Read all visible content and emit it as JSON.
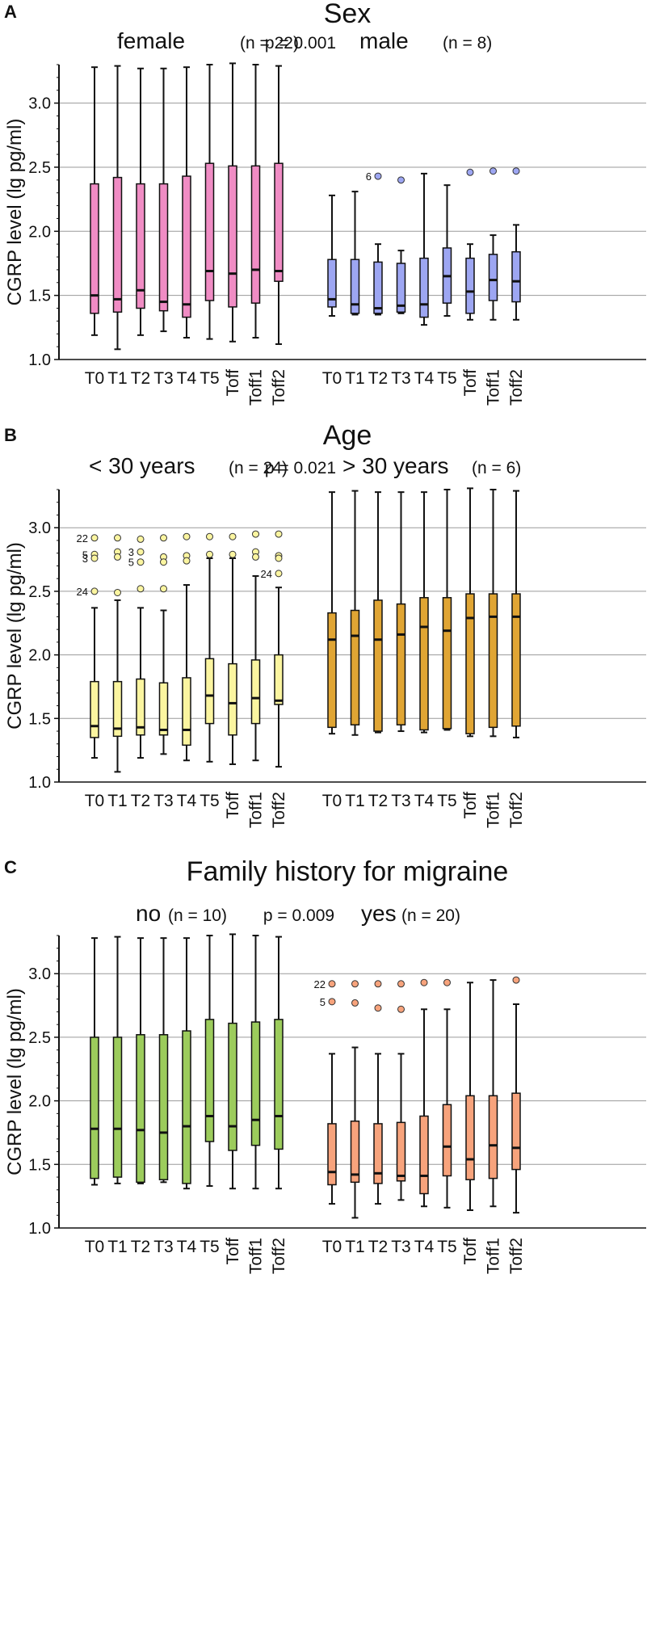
{
  "chart_data": [
    {
      "type": "boxplot",
      "panel": "A",
      "title": "Sex",
      "p_value": "p = 0.001",
      "ylabel": "CGRP level (lg pg/ml)",
      "ylim": [
        1.0,
        3.3
      ],
      "yticks": [
        "1.0",
        "1.5",
        "2.0",
        "2.5",
        "3.0"
      ],
      "grid": true,
      "categories": [
        "T0",
        "T1",
        "T2",
        "T3",
        "T4",
        "T5",
        "Toff",
        "Toff1",
        "Toff2"
      ],
      "groups": [
        {
          "name": "female",
          "n": "(n = 22)",
          "color": "#f08cc4",
          "boxes": [
            {
              "min": 1.19,
              "q1": 1.36,
              "median": 1.5,
              "q3": 2.37,
              "max": 3.28
            },
            {
              "min": 1.08,
              "q1": 1.37,
              "median": 1.47,
              "q3": 2.42,
              "max": 3.29
            },
            {
              "min": 1.19,
              "q1": 1.4,
              "median": 1.54,
              "q3": 2.37,
              "max": 3.27
            },
            {
              "min": 1.22,
              "q1": 1.38,
              "median": 1.45,
              "q3": 2.37,
              "max": 3.27
            },
            {
              "min": 1.17,
              "q1": 1.33,
              "median": 1.43,
              "q3": 2.43,
              "max": 3.28
            },
            {
              "min": 1.16,
              "q1": 1.46,
              "median": 1.69,
              "q3": 2.53,
              "max": 3.3
            },
            {
              "min": 1.14,
              "q1": 1.41,
              "median": 1.67,
              "q3": 2.51,
              "max": 3.31
            },
            {
              "min": 1.17,
              "q1": 1.44,
              "median": 1.7,
              "q3": 2.51,
              "max": 3.3
            },
            {
              "min": 1.12,
              "q1": 1.61,
              "median": 1.69,
              "q3": 2.53,
              "max": 3.29
            }
          ],
          "outliers": []
        },
        {
          "name": "male",
          "n": "(n = 8)",
          "color": "#9da6f2",
          "boxes": [
            {
              "min": 1.34,
              "q1": 1.41,
              "median": 1.47,
              "q3": 1.78,
              "max": 2.28
            },
            {
              "min": 1.35,
              "q1": 1.36,
              "median": 1.43,
              "q3": 1.78,
              "max": 2.31
            },
            {
              "min": 1.35,
              "q1": 1.36,
              "median": 1.4,
              "q3": 1.76,
              "max": 1.9
            },
            {
              "min": 1.36,
              "q1": 1.37,
              "median": 1.42,
              "q3": 1.75,
              "max": 1.85
            },
            {
              "min": 1.27,
              "q1": 1.33,
              "median": 1.43,
              "q3": 1.79,
              "max": 2.45
            },
            {
              "min": 1.34,
              "q1": 1.44,
              "median": 1.65,
              "q3": 1.87,
              "max": 2.36
            },
            {
              "min": 1.31,
              "q1": 1.36,
              "median": 1.53,
              "q3": 1.79,
              "max": 1.9
            },
            {
              "min": 1.31,
              "q1": 1.46,
              "median": 1.62,
              "q3": 1.82,
              "max": 1.97
            },
            {
              "min": 1.31,
              "q1": 1.45,
              "median": 1.61,
              "q3": 1.84,
              "max": 2.05
            }
          ],
          "outliers": [
            {
              "cat": 2,
              "value": 2.43,
              "label": "6"
            },
            {
              "cat": 3,
              "value": 2.4,
              "label": ""
            },
            {
              "cat": 6,
              "value": 2.46,
              "label": ""
            },
            {
              "cat": 7,
              "value": 2.47,
              "label": ""
            },
            {
              "cat": 8,
              "value": 2.47,
              "label": ""
            }
          ]
        }
      ]
    },
    {
      "type": "boxplot",
      "panel": "B",
      "title": "Age",
      "p_value": "p = 0.021",
      "ylabel": "CGRP level (lg pg/ml)",
      "ylim": [
        1.0,
        3.3
      ],
      "yticks": [
        "1.0",
        "1.5",
        "2.0",
        "2.5",
        "3.0"
      ],
      "grid": true,
      "categories": [
        "T0",
        "T1",
        "T2",
        "T3",
        "T4",
        "T5",
        "Toff",
        "Toff1",
        "Toff2"
      ],
      "groups": [
        {
          "name": "< 30 years",
          "n": "(n = 24)",
          "color": "#fbf5a0",
          "boxes": [
            {
              "min": 1.19,
              "q1": 1.35,
              "median": 1.44,
              "q3": 1.79,
              "max": 2.37
            },
            {
              "min": 1.08,
              "q1": 1.36,
              "median": 1.42,
              "q3": 1.79,
              "max": 2.43
            },
            {
              "min": 1.19,
              "q1": 1.37,
              "median": 1.43,
              "q3": 1.81,
              "max": 2.37
            },
            {
              "min": 1.22,
              "q1": 1.37,
              "median": 1.41,
              "q3": 1.78,
              "max": 2.35
            },
            {
              "min": 1.17,
              "q1": 1.29,
              "median": 1.41,
              "q3": 1.82,
              "max": 2.55
            },
            {
              "min": 1.16,
              "q1": 1.46,
              "median": 1.68,
              "q3": 1.97,
              "max": 2.76
            },
            {
              "min": 1.14,
              "q1": 1.37,
              "median": 1.62,
              "q3": 1.93,
              "max": 2.76
            },
            {
              "min": 1.17,
              "q1": 1.46,
              "median": 1.66,
              "q3": 1.96,
              "max": 2.62
            },
            {
              "min": 1.12,
              "q1": 1.61,
              "median": 1.64,
              "q3": 2.0,
              "max": 2.53
            }
          ],
          "outliers": [
            {
              "cat": 0,
              "value": 2.92,
              "label": "22"
            },
            {
              "cat": 0,
              "value": 2.79,
              "label": "5"
            },
            {
              "cat": 0,
              "value": 2.76,
              "label": "3"
            },
            {
              "cat": 0,
              "value": 2.5,
              "label": "24"
            },
            {
              "cat": 1,
              "value": 2.92,
              "label": ""
            },
            {
              "cat": 1,
              "value": 2.81,
              "label": ""
            },
            {
              "cat": 1,
              "value": 2.77,
              "label": ""
            },
            {
              "cat": 1,
              "value": 2.49,
              "label": ""
            },
            {
              "cat": 2,
              "value": 2.91,
              "label": ""
            },
            {
              "cat": 2,
              "value": 2.81,
              "label": "3"
            },
            {
              "cat": 2,
              "value": 2.73,
              "label": "5"
            },
            {
              "cat": 2,
              "value": 2.52,
              "label": ""
            },
            {
              "cat": 3,
              "value": 2.92,
              "label": ""
            },
            {
              "cat": 3,
              "value": 2.77,
              "label": ""
            },
            {
              "cat": 3,
              "value": 2.73,
              "label": ""
            },
            {
              "cat": 3,
              "value": 2.52,
              "label": ""
            },
            {
              "cat": 4,
              "value": 2.93,
              "label": ""
            },
            {
              "cat": 4,
              "value": 2.78,
              "label": ""
            },
            {
              "cat": 4,
              "value": 2.74,
              "label": ""
            },
            {
              "cat": 5,
              "value": 2.93,
              "label": ""
            },
            {
              "cat": 5,
              "value": 2.79,
              "label": ""
            },
            {
              "cat": 6,
              "value": 2.93,
              "label": ""
            },
            {
              "cat": 6,
              "value": 2.79,
              "label": ""
            },
            {
              "cat": 7,
              "value": 2.95,
              "label": ""
            },
            {
              "cat": 7,
              "value": 2.81,
              "label": ""
            },
            {
              "cat": 7,
              "value": 2.77,
              "label": ""
            },
            {
              "cat": 8,
              "value": 2.95,
              "label": ""
            },
            {
              "cat": 8,
              "value": 2.78,
              "label": ""
            },
            {
              "cat": 8,
              "value": 2.76,
              "label": ""
            },
            {
              "cat": 8,
              "value": 2.64,
              "label": "24"
            }
          ]
        },
        {
          "name": "> 30 years",
          "n": "(n = 6)",
          "color": "#e0a534",
          "boxes": [
            {
              "min": 1.38,
              "q1": 1.43,
              "median": 2.12,
              "q3": 2.33,
              "max": 3.28
            },
            {
              "min": 1.37,
              "q1": 1.45,
              "median": 2.15,
              "q3": 2.35,
              "max": 3.29
            },
            {
              "min": 1.39,
              "q1": 1.4,
              "median": 2.12,
              "q3": 2.43,
              "max": 3.28
            },
            {
              "min": 1.4,
              "q1": 1.45,
              "median": 2.16,
              "q3": 2.4,
              "max": 3.28
            },
            {
              "min": 1.39,
              "q1": 1.41,
              "median": 2.22,
              "q3": 2.45,
              "max": 3.28
            },
            {
              "min": 1.41,
              "q1": 1.42,
              "median": 2.19,
              "q3": 2.45,
              "max": 3.3
            },
            {
              "min": 1.36,
              "q1": 1.38,
              "median": 2.29,
              "q3": 2.48,
              "max": 3.31
            },
            {
              "min": 1.36,
              "q1": 1.43,
              "median": 2.3,
              "q3": 2.48,
              "max": 3.3
            },
            {
              "min": 1.35,
              "q1": 1.44,
              "median": 2.3,
              "q3": 2.48,
              "max": 3.29
            }
          ],
          "outliers": []
        }
      ]
    },
    {
      "type": "boxplot",
      "panel": "C",
      "title": "Family history for migraine",
      "p_value": "p = 0.009",
      "ylabel": "CGRP level (lg pg/ml)",
      "ylim": [
        1.0,
        3.3
      ],
      "yticks": [
        "1.0",
        "1.5",
        "2.0",
        "2.5",
        "3.0"
      ],
      "grid": true,
      "categories": [
        "T0",
        "T1",
        "T2",
        "T3",
        "T4",
        "T5",
        "Toff",
        "Toff1",
        "Toff2"
      ],
      "groups": [
        {
          "name": "no",
          "n": "(n = 10)",
          "color": "#9ccc5c",
          "boxes": [
            {
              "min": 1.34,
              "q1": 1.39,
              "median": 1.78,
              "q3": 2.5,
              "max": 3.28
            },
            {
              "min": 1.35,
              "q1": 1.4,
              "median": 1.78,
              "q3": 2.5,
              "max": 3.29
            },
            {
              "min": 1.35,
              "q1": 1.36,
              "median": 1.77,
              "q3": 2.52,
              "max": 3.28
            },
            {
              "min": 1.36,
              "q1": 1.38,
              "median": 1.75,
              "q3": 2.52,
              "max": 3.28
            },
            {
              "min": 1.31,
              "q1": 1.35,
              "median": 1.8,
              "q3": 2.55,
              "max": 3.28
            },
            {
              "min": 1.33,
              "q1": 1.68,
              "median": 1.88,
              "q3": 2.64,
              "max": 3.3
            },
            {
              "min": 1.31,
              "q1": 1.61,
              "median": 1.8,
              "q3": 2.61,
              "max": 3.31
            },
            {
              "min": 1.31,
              "q1": 1.65,
              "median": 1.85,
              "q3": 2.62,
              "max": 3.3
            },
            {
              "min": 1.31,
              "q1": 1.62,
              "median": 1.88,
              "q3": 2.64,
              "max": 3.29
            }
          ],
          "outliers": []
        },
        {
          "name": "yes",
          "n": "(n = 20)",
          "color": "#f7a37c",
          "boxes": [
            {
              "min": 1.19,
              "q1": 1.34,
              "median": 1.44,
              "q3": 1.82,
              "max": 2.37
            },
            {
              "min": 1.08,
              "q1": 1.36,
              "median": 1.42,
              "q3": 1.84,
              "max": 2.42
            },
            {
              "min": 1.19,
              "q1": 1.35,
              "median": 1.43,
              "q3": 1.82,
              "max": 2.37
            },
            {
              "min": 1.22,
              "q1": 1.37,
              "median": 1.41,
              "q3": 1.83,
              "max": 2.37
            },
            {
              "min": 1.17,
              "q1": 1.27,
              "median": 1.41,
              "q3": 1.88,
              "max": 2.72
            },
            {
              "min": 1.16,
              "q1": 1.41,
              "median": 1.64,
              "q3": 1.97,
              "max": 2.72
            },
            {
              "min": 1.14,
              "q1": 1.38,
              "median": 1.54,
              "q3": 2.04,
              "max": 2.93
            },
            {
              "min": 1.17,
              "q1": 1.39,
              "median": 1.65,
              "q3": 2.04,
              "max": 2.95
            },
            {
              "min": 1.12,
              "q1": 1.46,
              "median": 1.63,
              "q3": 2.06,
              "max": 2.76
            }
          ],
          "outliers": [
            {
              "cat": 0,
              "value": 2.92,
              "label": "22"
            },
            {
              "cat": 0,
              "value": 2.78,
              "label": "5"
            },
            {
              "cat": 1,
              "value": 2.92,
              "label": ""
            },
            {
              "cat": 1,
              "value": 2.77,
              "label": ""
            },
            {
              "cat": 2,
              "value": 2.92,
              "label": ""
            },
            {
              "cat": 2,
              "value": 2.73,
              "label": ""
            },
            {
              "cat": 3,
              "value": 2.92,
              "label": ""
            },
            {
              "cat": 3,
              "value": 2.72,
              "label": ""
            },
            {
              "cat": 4,
              "value": 2.93,
              "label": ""
            },
            {
              "cat": 5,
              "value": 2.93,
              "label": ""
            },
            {
              "cat": 8,
              "value": 2.95,
              "label": ""
            }
          ]
        }
      ]
    }
  ]
}
